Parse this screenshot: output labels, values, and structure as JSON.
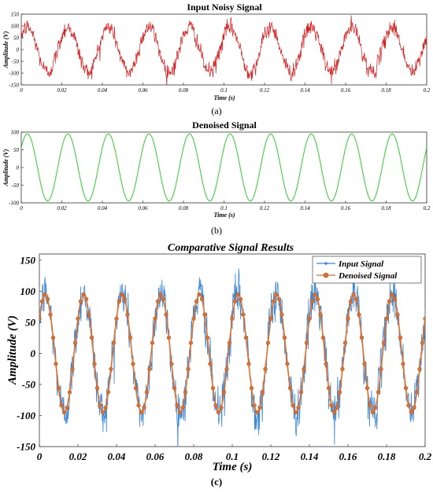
{
  "figure": {
    "captions": [
      "(a)",
      "(b)",
      "(c)"
    ]
  },
  "chart_data": [
    {
      "type": "line",
      "title": "Input Noisy Signal",
      "xlabel": "Time (s)",
      "ylabel": "Amplitude (V)",
      "xlim": [
        0,
        0.2
      ],
      "ylim": [
        -150,
        150
      ],
      "x_ticks": [
        "0",
        "0.02",
        "0.04",
        "0.06",
        "0.08",
        "0.1",
        "0.12",
        "0.14",
        "0.16",
        "0.18",
        "0.2"
      ],
      "y_ticks": [
        "150",
        "100",
        "50",
        "0",
        "-50",
        "-100",
        "-150"
      ],
      "grid": false,
      "legend": null,
      "signal": {
        "frequency_hz": 50,
        "phase_deg": 36,
        "amplitude_v": 95,
        "noise_std_v": 18
      },
      "series": [
        {
          "color": "#d62020"
        }
      ]
    },
    {
      "type": "line",
      "title": "Denoised Signal",
      "xlabel": "Time (s)",
      "ylabel": "Amplitude (V)",
      "xlim": [
        0,
        0.2
      ],
      "ylim": [
        -100,
        100
      ],
      "x_ticks": [
        "0",
        "0.02",
        "0.04",
        "0.06",
        "0.08",
        "0.1",
        "0.12",
        "0.14",
        "0.16",
        "0.18",
        "0.2"
      ],
      "y_ticks": [
        "100",
        "50",
        "0",
        "-50",
        "-100"
      ],
      "grid": false,
      "legend": null,
      "signal": {
        "frequency_hz": 50,
        "phase_deg": 36,
        "amplitude_v": 95
      },
      "series": [
        {
          "color": "#2ecc2e"
        }
      ]
    },
    {
      "type": "line",
      "title": "Comparative Signal Results",
      "xlabel": "Time (s)",
      "ylabel": "Amplitude (V)",
      "xlim": [
        0,
        0.2
      ],
      "ylim": [
        -150,
        160
      ],
      "x_ticks": [
        "0",
        "0.02",
        "0.04",
        "0.06",
        "0.08",
        "0.1",
        "0.12",
        "0.14",
        "0.16",
        "0.18",
        "0.2"
      ],
      "y_ticks": [
        "150",
        "100",
        "50",
        "0",
        "-50",
        "-100",
        "-150"
      ],
      "grid": false,
      "legend": "top-right",
      "signal": {
        "frequency_hz": 50,
        "phase_deg": 36,
        "amplitude_v": 95,
        "noise_std_v": 18
      },
      "series": [
        {
          "name": "Input Signal",
          "color": "#3a87d6",
          "marker": "dot"
        },
        {
          "name": "Denoised Signal",
          "color": "#e0702a",
          "marker": "circle"
        }
      ]
    }
  ]
}
